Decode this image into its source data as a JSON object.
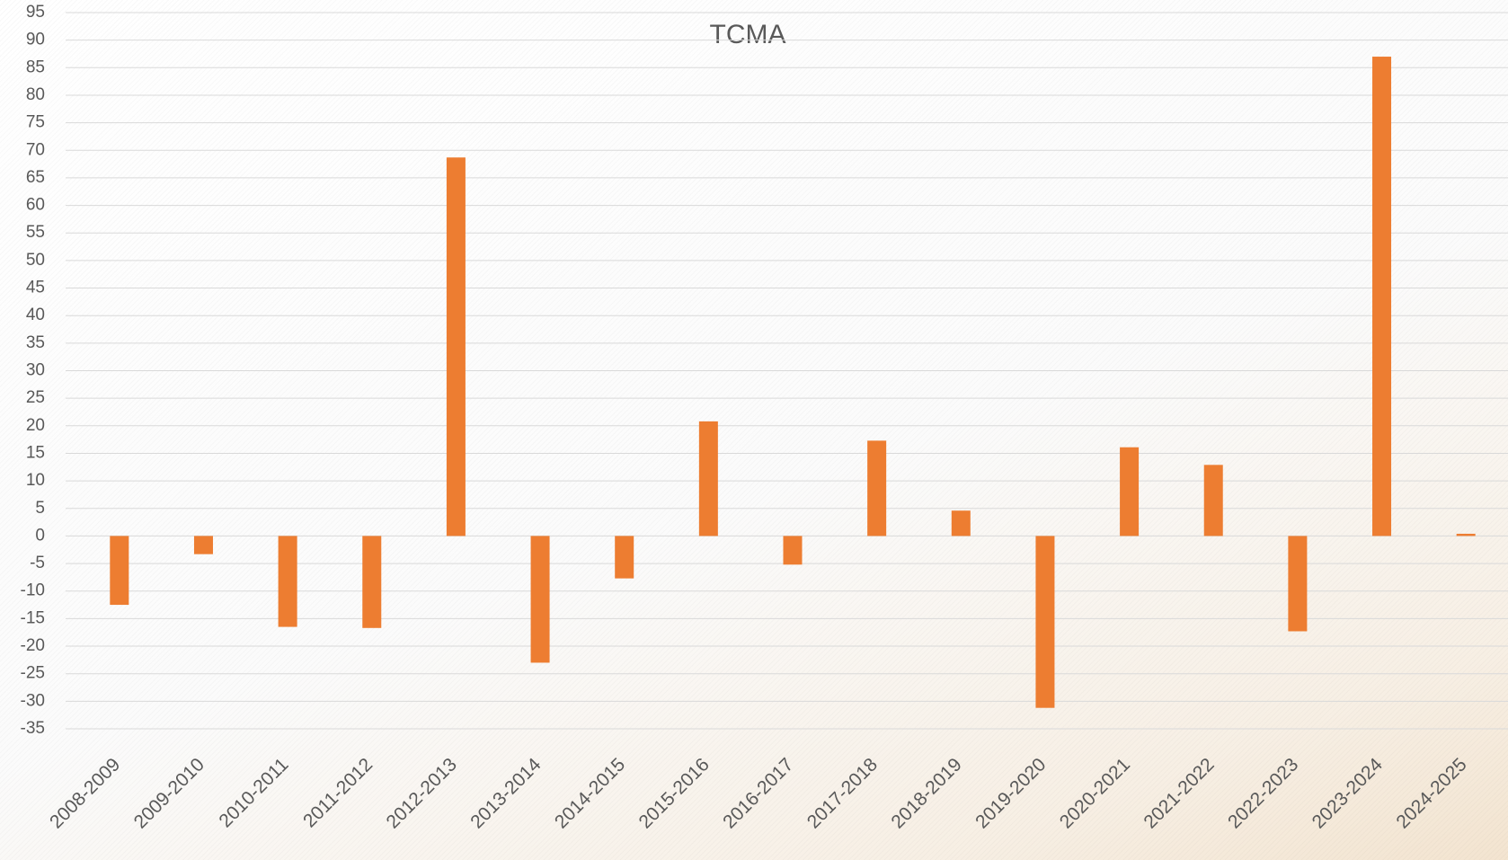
{
  "chart_data": {
    "type": "bar",
    "title": "TCMA",
    "categories": [
      "2008-2009",
      "2009-2010",
      "2010-2011",
      "2011-2012",
      "2012-2013",
      "2013-2014",
      "2014-2015",
      "2015-2016",
      "2016-2017",
      "2017-2018",
      "2018-2019",
      "2019-2020",
      "2020-2021",
      "2021-2022",
      "2022-2023",
      "2023-2024",
      "2024-2025"
    ],
    "values": [
      -12.5,
      -3.3,
      -16.5,
      -16.7,
      68.7,
      -23,
      -7.7,
      20.8,
      -5.2,
      17.3,
      4.6,
      -31.2,
      16.1,
      12.9,
      -17.3,
      87,
      0.4
    ],
    "color": "#ed7d31",
    "ylim": [
      -35,
      95
    ],
    "yticks": [
      -35,
      -30,
      -25,
      -20,
      -15,
      -10,
      -5,
      0,
      5,
      10,
      15,
      20,
      25,
      30,
      35,
      40,
      45,
      50,
      55,
      60,
      65,
      70,
      75,
      80,
      85,
      90,
      95
    ],
    "grid": true
  }
}
